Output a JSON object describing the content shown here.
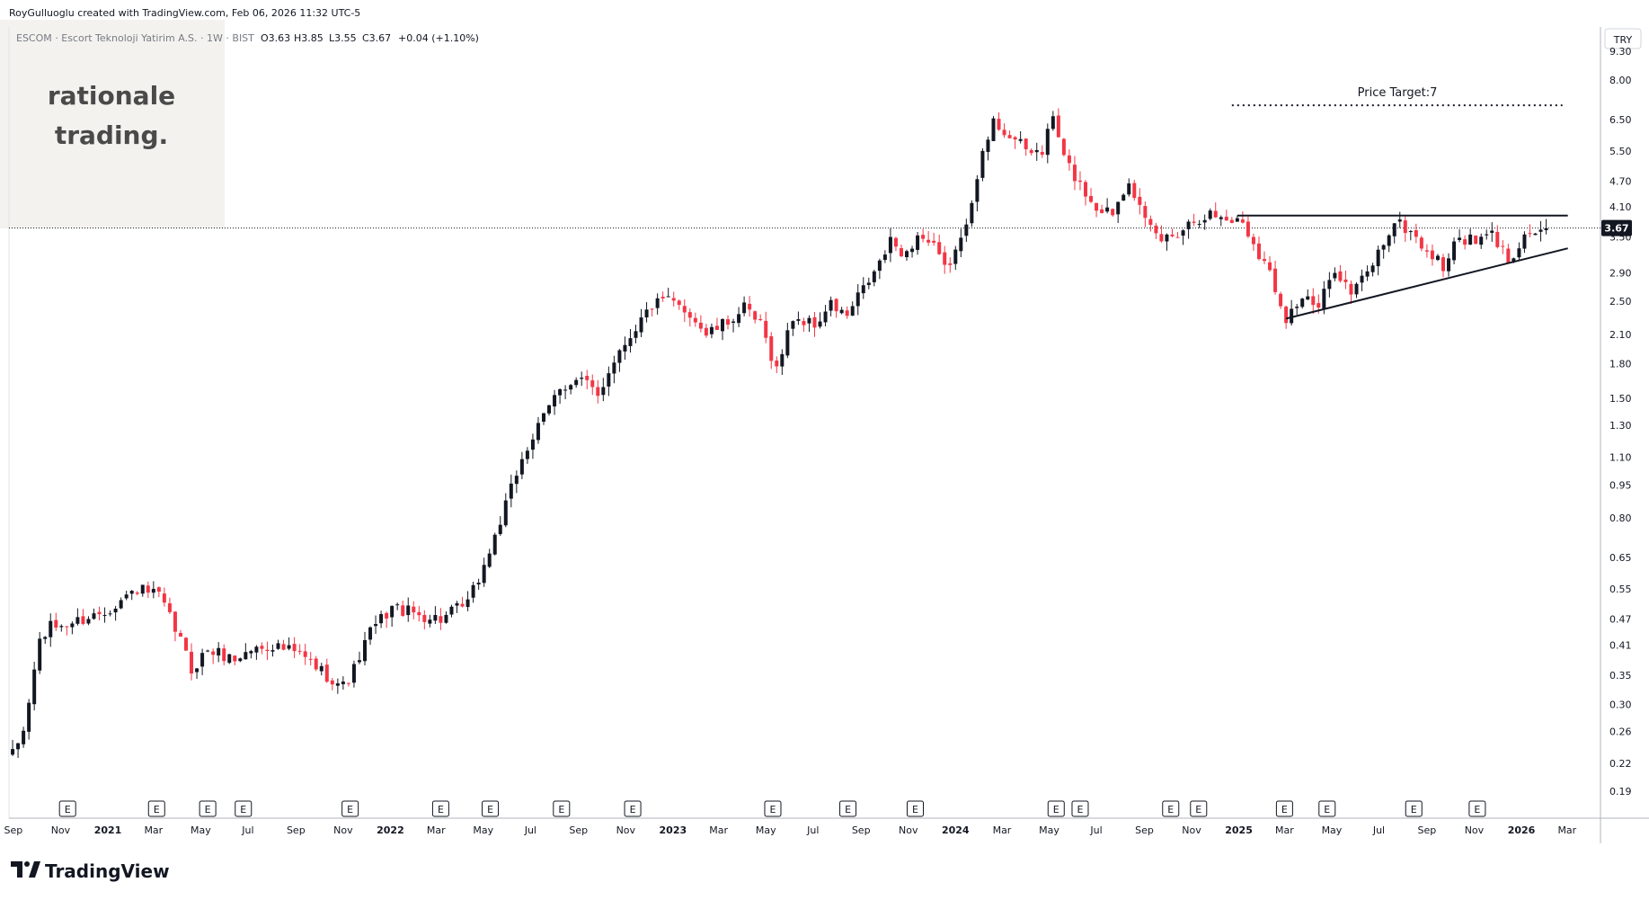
{
  "header": {
    "attribution": "RoyGulluoglu created with TradingView.com, Feb 06, 2026 11:32 UTC-5"
  },
  "instrument": {
    "name": "ESCOM · Escort Teknoloji Yatirim A.S. · 1W · BIST",
    "open": "O3.63",
    "high": "H3.85",
    "low": "L3.55",
    "close": "C3.67",
    "change": "+0.04 (+1.10%)"
  },
  "watermark": {
    "line1": "rationale",
    "line2": "trading."
  },
  "currency_label": "TRY",
  "last_price_label": "3.67",
  "annotation": {
    "price_target": "Price Target:7"
  },
  "footer": {
    "brand": "TradingView"
  },
  "earnings_marker": "E",
  "colors": {
    "up": "#131722",
    "down": "#f23645",
    "grid_line": "#e0e3eb",
    "text": "#131722"
  },
  "chart_data": {
    "type": "candlestick",
    "scale": "logarithmic",
    "interval": "1W",
    "ylim": [
      0.165,
      11.0
    ],
    "xlim": [
      "2020-08-24",
      "2026-03-23"
    ],
    "grid": false,
    "y_ticks": [
      9.3,
      8.0,
      6.5,
      5.5,
      4.7,
      4.1,
      3.5,
      2.9,
      2.5,
      2.1,
      1.8,
      1.5,
      1.3,
      1.1,
      0.95,
      0.8,
      0.65,
      0.55,
      0.47,
      0.41,
      0.35,
      0.3,
      0.26,
      0.22,
      0.19
    ],
    "y_tick_labels": [
      "9.30",
      "8.00",
      "6.50",
      "5.50",
      "4.70",
      "4.10",
      "3.50",
      "2.90",
      "2.50",
      "2.10",
      "1.80",
      "1.50",
      "1.30",
      "1.10",
      "0.95",
      "0.80",
      "0.65",
      "0.55",
      "0.47",
      "0.41",
      "0.35",
      "0.30",
      "0.26",
      "0.22",
      "0.19"
    ],
    "x_ticks": [
      {
        "date": "2020-09-01",
        "label": "Sep",
        "bold": false
      },
      {
        "date": "2020-11-01",
        "label": "Nov",
        "bold": false
      },
      {
        "date": "2021-01-01",
        "label": "2021",
        "bold": true
      },
      {
        "date": "2021-03-01",
        "label": "Mar",
        "bold": false
      },
      {
        "date": "2021-05-01",
        "label": "May",
        "bold": false
      },
      {
        "date": "2021-07-01",
        "label": "Jul",
        "bold": false
      },
      {
        "date": "2021-09-01",
        "label": "Sep",
        "bold": false
      },
      {
        "date": "2021-11-01",
        "label": "Nov",
        "bold": false
      },
      {
        "date": "2022-01-01",
        "label": "2022",
        "bold": true
      },
      {
        "date": "2022-03-01",
        "label": "Mar",
        "bold": false
      },
      {
        "date": "2022-05-01",
        "label": "May",
        "bold": false
      },
      {
        "date": "2022-07-01",
        "label": "Jul",
        "bold": false
      },
      {
        "date": "2022-09-01",
        "label": "Sep",
        "bold": false
      },
      {
        "date": "2022-11-01",
        "label": "Nov",
        "bold": false
      },
      {
        "date": "2023-01-01",
        "label": "2023",
        "bold": true
      },
      {
        "date": "2023-03-01",
        "label": "Mar",
        "bold": false
      },
      {
        "date": "2023-05-01",
        "label": "May",
        "bold": false
      },
      {
        "date": "2023-07-01",
        "label": "Jul",
        "bold": false
      },
      {
        "date": "2023-09-01",
        "label": "Sep",
        "bold": false
      },
      {
        "date": "2023-11-01",
        "label": "Nov",
        "bold": false
      },
      {
        "date": "2024-01-01",
        "label": "2024",
        "bold": true
      },
      {
        "date": "2024-03-01",
        "label": "Mar",
        "bold": false
      },
      {
        "date": "2024-05-01",
        "label": "May",
        "bold": false
      },
      {
        "date": "2024-07-01",
        "label": "Jul",
        "bold": false
      },
      {
        "date": "2024-09-01",
        "label": "Sep",
        "bold": false
      },
      {
        "date": "2024-11-01",
        "label": "Nov",
        "bold": false
      },
      {
        "date": "2025-01-01",
        "label": "2025",
        "bold": true
      },
      {
        "date": "2025-03-01",
        "label": "Mar",
        "bold": false
      },
      {
        "date": "2025-05-01",
        "label": "May",
        "bold": false
      },
      {
        "date": "2025-07-01",
        "label": "Jul",
        "bold": false
      },
      {
        "date": "2025-09-01",
        "label": "Sep",
        "bold": false
      },
      {
        "date": "2025-11-01",
        "label": "Nov",
        "bold": false
      },
      {
        "date": "2026-01-01",
        "label": "2026",
        "bold": true
      },
      {
        "date": "2026-03-01",
        "label": "Mar",
        "bold": false
      }
    ],
    "earnings_dates": [
      "2020-11-10",
      "2021-03-05",
      "2021-05-10",
      "2021-06-25",
      "2021-11-10",
      "2022-03-07",
      "2022-05-10",
      "2022-08-10",
      "2022-11-10",
      "2023-05-10",
      "2023-08-15",
      "2023-11-10",
      "2024-05-10",
      "2024-06-10",
      "2024-10-05",
      "2024-11-10",
      "2025-03-01",
      "2025-04-25",
      "2025-08-15",
      "2025-11-05"
    ],
    "last_price": 3.67,
    "last_bar": {
      "open": 3.63,
      "high": 3.85,
      "low": 3.55,
      "close": 3.67
    },
    "anchors": [
      [
        "2020-08-31",
        0.23
      ],
      [
        "2020-09-14",
        0.26
      ],
      [
        "2020-10-05",
        0.42
      ],
      [
        "2020-10-19",
        0.45
      ],
      [
        "2020-11-16",
        0.46
      ],
      [
        "2020-12-28",
        0.49
      ],
      [
        "2021-02-08",
        0.55
      ],
      [
        "2021-03-08",
        0.53
      ],
      [
        "2021-04-05",
        0.42
      ],
      [
        "2021-04-19",
        0.36
      ],
      [
        "2021-05-10",
        0.4
      ],
      [
        "2021-06-14",
        0.38
      ],
      [
        "2021-07-05",
        0.4
      ],
      [
        "2021-08-02",
        0.41
      ],
      [
        "2021-09-06",
        0.39
      ],
      [
        "2021-10-11",
        0.35
      ],
      [
        "2021-11-01",
        0.33
      ],
      [
        "2021-11-15",
        0.36
      ],
      [
        "2021-12-06",
        0.44
      ],
      [
        "2022-01-03",
        0.5
      ],
      [
        "2022-02-07",
        0.48
      ],
      [
        "2022-03-07",
        0.47
      ],
      [
        "2022-04-11",
        0.51
      ],
      [
        "2022-05-02",
        0.62
      ],
      [
        "2022-05-30",
        0.85
      ],
      [
        "2022-06-20",
        1.1
      ],
      [
        "2022-07-18",
        1.35
      ],
      [
        "2022-08-08",
        1.6
      ],
      [
        "2022-09-05",
        1.65
      ],
      [
        "2022-09-26",
        1.52
      ],
      [
        "2022-10-17",
        1.85
      ],
      [
        "2022-11-07",
        2.1
      ],
      [
        "2022-12-05",
        2.45
      ],
      [
        "2022-12-26",
        2.5
      ],
      [
        "2023-01-23",
        2.35
      ],
      [
        "2023-02-13",
        2.1
      ],
      [
        "2023-03-06",
        2.2
      ],
      [
        "2023-04-03",
        2.4
      ],
      [
        "2023-04-24",
        2.2
      ],
      [
        "2023-05-15",
        1.75
      ],
      [
        "2023-06-05",
        2.3
      ],
      [
        "2023-07-03",
        2.2
      ],
      [
        "2023-07-24",
        2.45
      ],
      [
        "2023-08-14",
        2.3
      ],
      [
        "2023-08-28",
        2.55
      ],
      [
        "2023-09-18",
        2.9
      ],
      [
        "2023-10-09",
        3.4
      ],
      [
        "2023-10-30",
        3.2
      ],
      [
        "2023-11-13",
        3.55
      ],
      [
        "2023-12-04",
        3.3
      ],
      [
        "2023-12-18",
        2.95
      ],
      [
        "2024-01-08",
        3.4
      ],
      [
        "2024-01-29",
        4.9
      ],
      [
        "2024-02-19",
        6.4
      ],
      [
        "2024-03-11",
        6.0
      ],
      [
        "2024-04-01",
        5.5
      ],
      [
        "2024-04-22",
        5.5
      ],
      [
        "2024-05-06",
        6.6
      ],
      [
        "2024-05-20",
        5.3
      ],
      [
        "2024-06-10",
        4.6
      ],
      [
        "2024-07-01",
        4.1
      ],
      [
        "2024-07-22",
        4.0
      ],
      [
        "2024-08-12",
        4.8
      ],
      [
        "2024-09-02",
        3.75
      ],
      [
        "2024-09-23",
        3.45
      ],
      [
        "2024-10-14",
        3.6
      ],
      [
        "2024-11-04",
        3.85
      ],
      [
        "2024-11-25",
        3.95
      ],
      [
        "2024-12-16",
        3.85
      ],
      [
        "2025-01-06",
        3.8
      ],
      [
        "2025-01-20",
        3.4
      ],
      [
        "2025-02-10",
        2.9
      ],
      [
        "2025-03-03",
        2.3
      ],
      [
        "2025-03-24",
        2.55
      ],
      [
        "2025-04-14",
        2.4
      ],
      [
        "2025-05-05",
        3.0
      ],
      [
        "2025-05-26",
        2.6
      ],
      [
        "2025-06-16",
        2.9
      ],
      [
        "2025-07-07",
        3.4
      ],
      [
        "2025-07-21",
        3.8
      ],
      [
        "2025-08-11",
        3.6
      ],
      [
        "2025-09-01",
        3.25
      ],
      [
        "2025-09-22",
        3.0
      ],
      [
        "2025-10-13",
        3.5
      ],
      [
        "2025-11-03",
        3.4
      ],
      [
        "2025-11-24",
        3.55
      ],
      [
        "2025-12-15",
        3.1
      ],
      [
        "2026-01-05",
        3.55
      ],
      [
        "2026-01-26",
        3.63
      ],
      [
        "2026-02-02",
        3.67
      ]
    ],
    "drawings": {
      "resistance": {
        "from": [
          "2024-12-30",
          3.92
        ],
        "to": [
          "2026-03-02",
          3.92
        ]
      },
      "support": {
        "from": [
          "2025-03-03",
          2.28
        ],
        "to": [
          "2026-03-02",
          3.3
        ]
      },
      "target": {
        "from": [
          "2024-12-23",
          7.0
        ],
        "to": [
          "2026-02-23",
          7.0
        ],
        "style": "dotted"
      }
    }
  }
}
